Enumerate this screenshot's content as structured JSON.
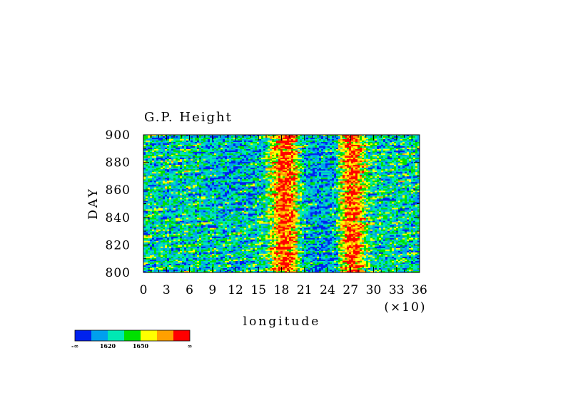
{
  "chart_data": {
    "type": "heatmap",
    "title": "G.P. Height",
    "xlabel": "longitude",
    "ylabel": "DAY",
    "x_scale_note": "(×10)",
    "xlim": [
      0,
      36
    ],
    "ylim": [
      800,
      900
    ],
    "x_ticks": [
      0,
      3,
      6,
      9,
      12,
      15,
      18,
      21,
      24,
      27,
      30,
      33,
      36
    ],
    "y_ticks": [
      800,
      820,
      840,
      860,
      880,
      900
    ],
    "x_tick_labels": [
      "0",
      "3",
      "6",
      "9",
      "12",
      "15",
      "18",
      "21",
      "24",
      "27",
      "30",
      "33",
      "36"
    ],
    "y_tick_labels": [
      "800",
      "820",
      "840",
      "860",
      "880",
      "900"
    ],
    "high_value_bands_longitude": [
      [
        17,
        20
      ],
      [
        26,
        28.5
      ]
    ],
    "colorbar": {
      "colors": [
        "#0022ee",
        "#00a0ee",
        "#00e8b4",
        "#00e000",
        "#ffff00",
        "#ffa000",
        "#ff0000"
      ],
      "labels": [
        "-∞",
        "1620",
        "1650",
        "∞"
      ]
    }
  }
}
